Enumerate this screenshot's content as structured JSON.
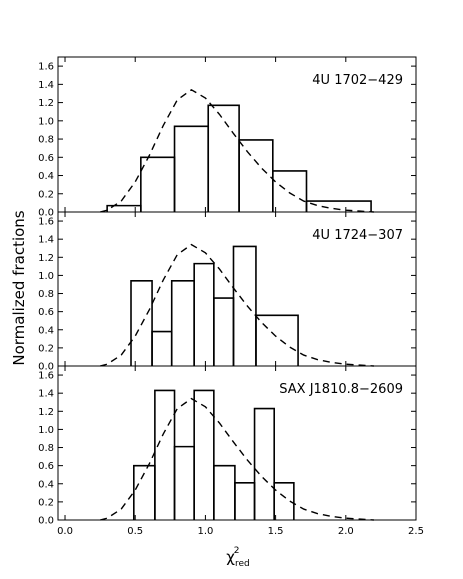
{
  "chart_data": {
    "type": "line",
    "ylabel": "Normalized fractions",
    "xlabel": "χ²red",
    "xlabel_parts": {
      "symbol": "χ",
      "superscript": "2",
      "subscript": "red"
    },
    "xlim": [
      -0.05,
      2.5
    ],
    "ylim": [
      0,
      1.7
    ],
    "xticks": [
      "0.0",
      "0.5",
      "1.0",
      "1.5",
      "2.0",
      "2.5"
    ],
    "yticks": [
      "0.0",
      "0.2",
      "0.4",
      "0.6",
      "0.8",
      "1.0",
      "1.2",
      "1.4",
      "1.6"
    ],
    "series_style": {
      "histogram": "solid step, black",
      "model": "dashed, black"
    },
    "panels": [
      {
        "title": "4U 1702−429",
        "histogram": {
          "bin_edges": [
            0.3,
            0.54,
            0.78,
            1.02,
            1.24,
            1.48,
            1.72,
            2.18
          ],
          "values": [
            0.07,
            0.6,
            0.94,
            1.17,
            0.79,
            0.45,
            0.12
          ]
        },
        "model_curve": {
          "x": [
            0.25,
            0.3,
            0.4,
            0.5,
            0.6,
            0.7,
            0.8,
            0.9,
            1.0,
            1.1,
            1.2,
            1.3,
            1.4,
            1.5,
            1.6,
            1.7,
            1.8,
            1.9,
            2.0,
            2.1,
            2.2
          ],
          "y": [
            0.0,
            0.02,
            0.12,
            0.33,
            0.62,
            0.95,
            1.23,
            1.34,
            1.25,
            1.07,
            0.86,
            0.66,
            0.48,
            0.33,
            0.21,
            0.12,
            0.07,
            0.04,
            0.02,
            0.01,
            0.0
          ]
        }
      },
      {
        "title": "4U 1724−307",
        "histogram": {
          "bin_edges": [
            0.47,
            0.62,
            0.76,
            0.92,
            1.06,
            1.2,
            1.36,
            1.66
          ],
          "values": [
            0.94,
            0.38,
            0.94,
            1.13,
            0.75,
            1.32,
            0.56
          ]
        },
        "model_curve": {
          "x": [
            0.25,
            0.3,
            0.4,
            0.5,
            0.6,
            0.7,
            0.8,
            0.9,
            1.0,
            1.1,
            1.2,
            1.3,
            1.4,
            1.5,
            1.6,
            1.7,
            1.8,
            1.9,
            2.0,
            2.1,
            2.2
          ],
          "y": [
            0.0,
            0.02,
            0.12,
            0.33,
            0.62,
            0.95,
            1.23,
            1.34,
            1.25,
            1.07,
            0.86,
            0.66,
            0.48,
            0.33,
            0.21,
            0.12,
            0.07,
            0.04,
            0.02,
            0.01,
            0.0
          ]
        }
      },
      {
        "title": "SAX J1810.8−2609",
        "histogram": {
          "bin_edges": [
            0.49,
            0.64,
            0.78,
            0.92,
            1.06,
            1.21,
            1.35,
            1.49,
            1.63
          ],
          "values": [
            0.6,
            1.43,
            0.81,
            1.43,
            0.6,
            0.41,
            1.23,
            0.41
          ]
        },
        "model_curve": {
          "x": [
            0.25,
            0.3,
            0.4,
            0.5,
            0.6,
            0.7,
            0.8,
            0.9,
            1.0,
            1.1,
            1.2,
            1.3,
            1.4,
            1.5,
            1.6,
            1.7,
            1.8,
            1.9,
            2.0,
            2.1,
            2.2
          ],
          "y": [
            0.0,
            0.02,
            0.12,
            0.33,
            0.62,
            0.95,
            1.23,
            1.34,
            1.25,
            1.07,
            0.86,
            0.66,
            0.48,
            0.33,
            0.21,
            0.12,
            0.07,
            0.04,
            0.02,
            0.01,
            0.0
          ]
        }
      }
    ]
  }
}
